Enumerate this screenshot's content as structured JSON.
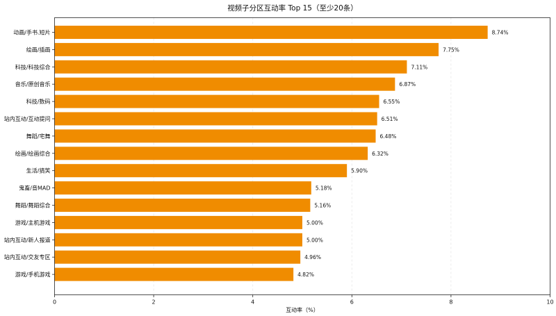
{
  "chart_data": {
    "type": "bar",
    "orientation": "horizontal",
    "title": "视频子分区互动率 Top 15（至少20条）",
    "xlabel": "互动率（%）",
    "ylabel": "",
    "xlim": [
      0,
      10
    ],
    "xticks": [
      0,
      2,
      4,
      6,
      8,
      10
    ],
    "grid": "vertical-dashed",
    "bar_color": "#f08c00",
    "categories": [
      "动画/手书.短片",
      "绘画/插画",
      "科技/科技综合",
      "音乐/原创音乐",
      "科技/数码",
      "站内互动/互动提问",
      "舞蹈/宅舞",
      "绘画/绘画综合",
      "生活/搞笑",
      "鬼畜/音MAD",
      "舞蹈/舞蹈综合",
      "游戏/主机游戏",
      "站内互动/新人报道",
      "站内互动/交友专区",
      "游戏/手机游戏"
    ],
    "values": [
      8.74,
      7.75,
      7.11,
      6.87,
      6.55,
      6.51,
      6.48,
      6.32,
      5.9,
      5.18,
      5.16,
      5.0,
      5.0,
      4.96,
      4.82
    ],
    "value_labels": [
      "8.74%",
      "7.75%",
      "7.11%",
      "6.87%",
      "6.55%",
      "6.51%",
      "6.48%",
      "6.32%",
      "5.90%",
      "5.18%",
      "5.16%",
      "5.00%",
      "5.00%",
      "4.96%",
      "4.82%"
    ]
  }
}
